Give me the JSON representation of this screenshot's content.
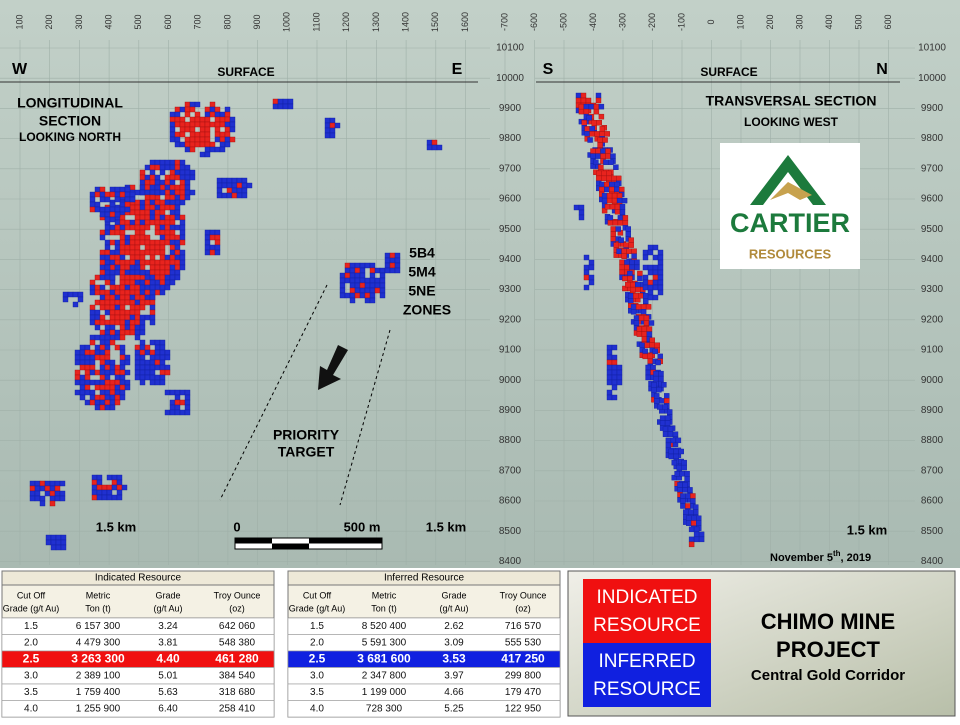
{
  "left_section": {
    "west": "W",
    "surface": "SURFACE",
    "east": "E",
    "title": [
      "LONGITUDINAL",
      "SECTION",
      "LOOKING NORTH"
    ],
    "easting_ticks": [
      "100",
      "200",
      "300",
      "400",
      "500",
      "600",
      "700",
      "800",
      "900",
      "1000",
      "1100",
      "1200",
      "1300",
      "1400",
      "1500",
      "1600"
    ],
    "zone_labels": [
      "5B4",
      "5M4",
      "5NE",
      "ZONES"
    ],
    "target": [
      "PRIORITY",
      "TARGET"
    ],
    "scale_left": "1.5 km",
    "scale_zero": "0",
    "scale_500": "500 m",
    "scale_right": "1.5 km"
  },
  "elevation_ticks": [
    "10100",
    "10000",
    "9900",
    "9800",
    "9700",
    "9600",
    "9500",
    "9400",
    "9300",
    "9200",
    "9100",
    "9000",
    "8900",
    "8800",
    "8700",
    "8600",
    "8500",
    "8400"
  ],
  "right_section": {
    "south": "S",
    "surface": "SURFACE",
    "north": "N",
    "title": "TRANSVERSAL SECTION",
    "subtitle": "LOOKING WEST",
    "northing_ticks": [
      "-700",
      "-600",
      "-500",
      "-400",
      "-300",
      "-200",
      "-100",
      "0",
      "100",
      "200",
      "300",
      "400",
      "500",
      "600"
    ],
    "scale": "1.5 km",
    "date": {
      "text": "November 5",
      "sup": "th",
      "year": ", 2019"
    }
  },
  "logo": {
    "name": "CARTIER",
    "sub": "RESOURCES"
  },
  "tables": [
    {
      "title": "Indicated Resource",
      "headers": [
        [
          "Cut Off",
          "Grade (g/t Au)"
        ],
        [
          "Metric",
          "Ton (t)"
        ],
        [
          "Grade",
          "(g/t Au)"
        ],
        [
          "Troy Ounce",
          "(oz)"
        ]
      ],
      "rows": [
        [
          "1.5",
          "6 157 300",
          "3.24",
          "642 060"
        ],
        [
          "2.0",
          "4 479 300",
          "3.81",
          "548 380"
        ],
        [
          "2.5",
          "3 263 300",
          "4.40",
          "461 280"
        ],
        [
          "3.0",
          "2 389 100",
          "5.01",
          "384 540"
        ],
        [
          "3.5",
          "1 759 400",
          "5.63",
          "318 680"
        ],
        [
          "4.0",
          "1 255 900",
          "6.40",
          "258 410"
        ]
      ],
      "highlight_row": 2,
      "highlight_color": "#f01010"
    },
    {
      "title": "Inferred Resource",
      "headers": [
        [
          "Cut Off",
          "Grade (g/t Au)"
        ],
        [
          "Metric",
          "Ton (t)"
        ],
        [
          "Grade",
          "(g/t Au)"
        ],
        [
          "Troy Ounce",
          "(oz)"
        ]
      ],
      "rows": [
        [
          "1.5",
          "8 520 400",
          "2.62",
          "716 570"
        ],
        [
          "2.0",
          "5 591 300",
          "3.09",
          "555 530"
        ],
        [
          "2.5",
          "3 681 600",
          "3.53",
          "417 250"
        ],
        [
          "3.0",
          "2 347 800",
          "3.97",
          "299 800"
        ],
        [
          "3.5",
          "1 199 000",
          "4.66",
          "179 470"
        ],
        [
          "4.0",
          "728 300",
          "5.25",
          "122 950"
        ]
      ],
      "highlight_row": 2,
      "highlight_color": "#1020e0"
    }
  ],
  "legend": {
    "indicated": [
      "INDICATED",
      "RESOURCE"
    ],
    "inferred": [
      "INFERRED",
      "RESOURCE"
    ]
  },
  "project": {
    "title": [
      "CHIMO MINE",
      "PROJECT"
    ],
    "subtitle": "Central Gold Corridor"
  }
}
